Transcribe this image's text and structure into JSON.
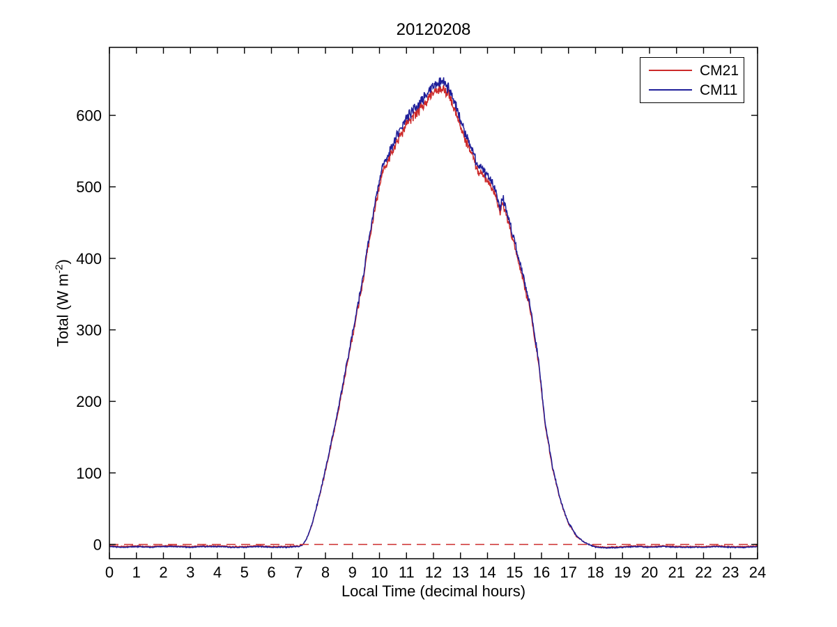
{
  "chart_data": {
    "type": "line",
    "title": "20120208",
    "xlabel": "Local Time (decimal hours)",
    "ylabel": "Total (W m-2)",
    "ylabel_parts": {
      "prefix": "Total (W m",
      "sup": "-2",
      "suffix": ")"
    },
    "xlim": [
      0,
      24
    ],
    "ylim": [
      -20,
      695
    ],
    "xticks": [
      0,
      1,
      2,
      3,
      4,
      5,
      6,
      7,
      8,
      9,
      10,
      11,
      12,
      13,
      14,
      15,
      16,
      17,
      18,
      19,
      20,
      21,
      22,
      23,
      24
    ],
    "yticks": [
      0,
      100,
      200,
      300,
      400,
      500,
      600
    ],
    "grid": false,
    "legend_position": "northeast",
    "axis_color": "#000000",
    "zero_line": {
      "value": 0,
      "color": "#cc2a2a",
      "style": "dashed"
    },
    "x": [
      0,
      0.5,
      1,
      1.5,
      2,
      2.5,
      3,
      3.5,
      4,
      4.5,
      5,
      5.5,
      6,
      6.5,
      7.0,
      7.15,
      7.3,
      7.5,
      7.8,
      8.0,
      8.4,
      8.7,
      9.0,
      9.3,
      9.6,
      9.9,
      10.14,
      10.4,
      10.7,
      11.0,
      11.3,
      11.6,
      11.9,
      12.1,
      12.34,
      12.6,
      12.9,
      13.2,
      13.45,
      13.57,
      13.8,
      14.1,
      14.35,
      14.45,
      14.55,
      14.75,
      15.0,
      15.3,
      15.6,
      15.9,
      16.12,
      16.4,
      16.7,
      17.0,
      17.3,
      17.55,
      17.75,
      18.0,
      18.5,
      19.0,
      19.5,
      20.0,
      20.5,
      21.0,
      21.5,
      22.0,
      22.5,
      23.0,
      23.5,
      24.0
    ],
    "series": [
      {
        "name": "CM21",
        "color": "#cc2a2a",
        "y": [
          -2,
          -3,
          -2,
          -3,
          -2,
          -2,
          -3,
          -2,
          -2,
          -3,
          -3,
          -2,
          -3,
          -3,
          -2,
          -1,
          8,
          27,
          71,
          103,
          172,
          231,
          291,
          350,
          419,
          483,
          526,
          544,
          568,
          587,
          601,
          613,
          628,
          634,
          640,
          625,
          599,
          563,
          544,
          528,
          517,
          504,
          485,
          463,
          480,
          453,
          419,
          372,
          325,
          251,
          172,
          108,
          61,
          29,
          11,
          4,
          0,
          -3,
          -4,
          -3,
          -2,
          -3,
          -2,
          -3,
          -3,
          -3,
          -2,
          -3,
          -3,
          -2
        ]
      },
      {
        "name": "CM11",
        "color": "#1e1e99",
        "y": [
          -3,
          -4,
          -3,
          -4,
          -3,
          -3,
          -4,
          -3,
          -3,
          -4,
          -4,
          -3,
          -4,
          -4,
          -3,
          -1,
          8,
          28,
          72,
          105,
          175,
          235,
          295,
          355,
          425,
          490,
          534,
          552,
          576,
          596,
          610,
          622,
          638,
          644,
          650,
          635,
          608,
          572,
          552,
          536,
          525,
          512,
          492,
          470,
          487,
          460,
          425,
          378,
          330,
          255,
          175,
          110,
          62,
          30,
          12,
          4,
          0,
          -4,
          -5,
          -4,
          -3,
          -4,
          -3,
          -4,
          -4,
          -4,
          -3,
          -4,
          -4,
          -3
        ]
      }
    ],
    "noise": {
      "night_amp": 0.7,
      "day_base": 1.1,
      "day_coeff": 0.011
    }
  }
}
